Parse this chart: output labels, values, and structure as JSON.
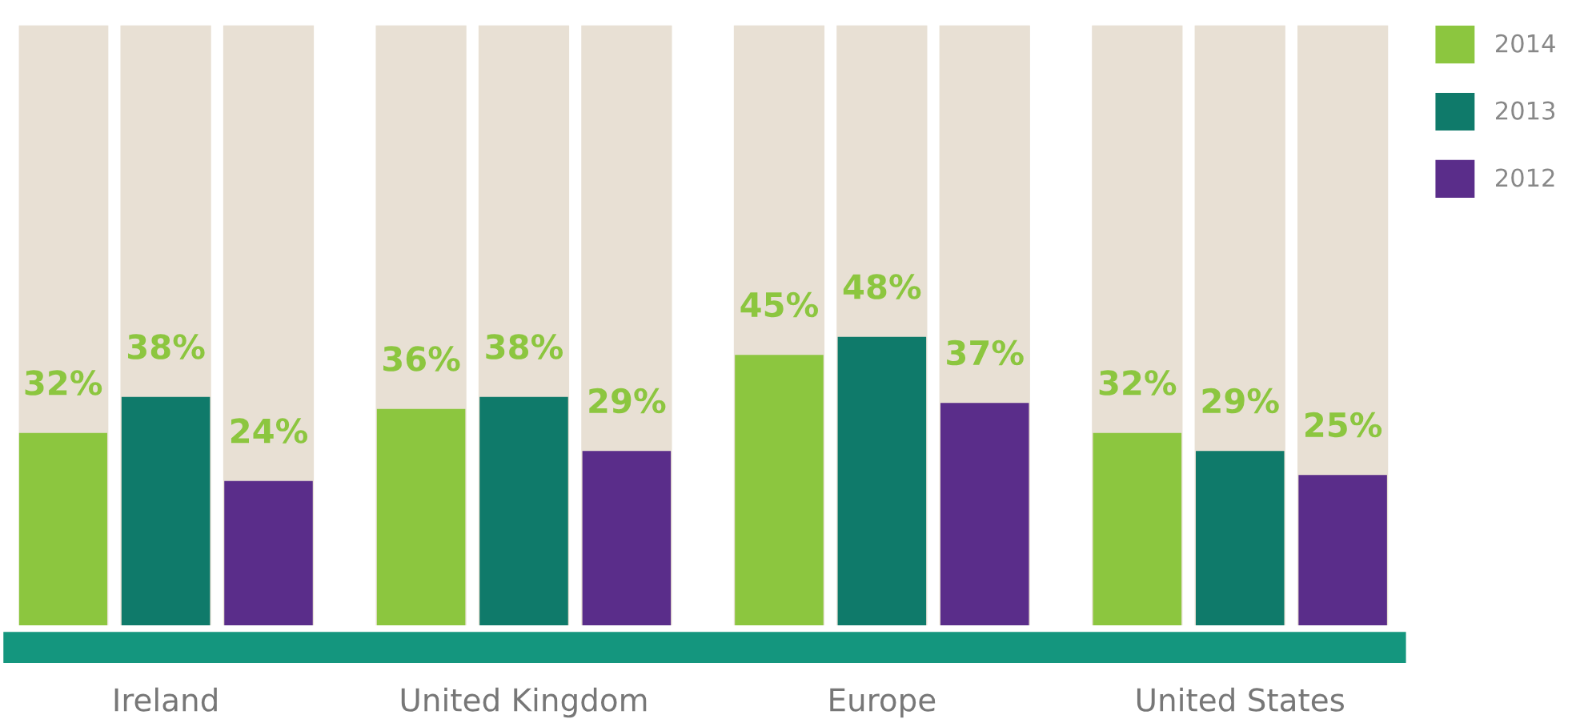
{
  "chart_data": {
    "type": "bar",
    "categories": [
      "Ireland",
      "United Kingdom",
      "Europe",
      "United States"
    ],
    "series": [
      {
        "name": "2014",
        "color": "#8cc63f",
        "values": [
          32,
          36,
          45,
          32
        ],
        "value_labels": [
          "32%",
          "36%",
          "45%",
          "32%"
        ]
      },
      {
        "name": "2013",
        "color": "#0f7a6a",
        "values": [
          38,
          38,
          48,
          29
        ],
        "value_labels": [
          "38%",
          "38%",
          "48%",
          "29%"
        ]
      },
      {
        "name": "2012",
        "color": "#5a2d8a",
        "values": [
          24,
          29,
          37,
          25
        ],
        "value_labels": [
          "24%",
          "29%",
          "37%",
          "25%"
        ]
      }
    ],
    "legend": "top right",
    "grid": false,
    "tick_labels": "x"
  }
}
